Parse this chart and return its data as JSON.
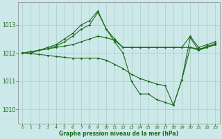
{
  "bg_color": "#cce8e8",
  "line_color": "#1a6b1a",
  "grid_color": "#aacccc",
  "xlabel": "Graphe pression niveau de la mer (hPa)",
  "xlim": [
    -0.5,
    23.5
  ],
  "ylim": [
    1009.5,
    1013.8
  ],
  "yticks": [
    1010,
    1011,
    1012,
    1013
  ],
  "xticks": [
    0,
    1,
    2,
    3,
    4,
    5,
    6,
    7,
    8,
    9,
    10,
    11,
    12,
    13,
    14,
    15,
    16,
    17,
    18,
    19,
    20,
    21,
    22,
    23
  ],
  "series": [
    {
      "x": [
        0,
        1,
        2,
        3,
        4,
        5,
        6,
        7,
        8,
        9,
        10,
        11,
        12,
        13,
        14,
        15,
        16,
        17,
        18,
        19,
        20,
        21,
        22,
        23
      ],
      "y": [
        1012.0,
        1012.0,
        1012.1,
        1012.2,
        1012.3,
        1012.5,
        1012.7,
        1013.0,
        1013.15,
        1013.5,
        1012.85,
        1012.4,
        1012.0,
        1011.0,
        1010.55,
        1010.55,
        1010.35,
        1010.25,
        1010.15,
        1011.05,
        1012.55,
        1012.1,
        1012.25,
        1012.3
      ]
    },
    {
      "x": [
        0,
        1,
        2,
        3,
        4,
        5,
        6,
        7,
        8,
        9,
        10,
        11,
        12,
        13,
        14,
        15,
        16,
        17,
        18,
        19,
        20,
        21,
        22,
        23
      ],
      "y": [
        1012.0,
        1012.05,
        1012.1,
        1012.15,
        1012.25,
        1012.4,
        1012.6,
        1012.85,
        1013.0,
        1013.45,
        1012.85,
        1012.5,
        1012.2,
        1012.2,
        1012.2,
        1012.2,
        1012.2,
        1012.2,
        1012.2,
        1012.2,
        1012.6,
        1012.2,
        1012.3,
        1012.4
      ]
    },
    {
      "x": [
        0,
        1,
        2,
        3,
        4,
        5,
        6,
        7,
        8,
        9,
        10,
        11,
        12,
        13,
        14,
        15,
        16,
        17,
        18,
        19,
        20,
        21,
        22,
        23
      ],
      "y": [
        1012.0,
        1012.05,
        1012.1,
        1012.15,
        1012.2,
        1012.25,
        1012.3,
        1012.4,
        1012.5,
        1012.6,
        1012.55,
        1012.45,
        1012.2,
        1012.2,
        1012.2,
        1012.2,
        1012.2,
        1012.2,
        1012.2,
        1012.2,
        1012.2,
        1012.15,
        1012.2,
        1012.35
      ]
    },
    {
      "x": [
        0,
        1,
        2,
        3,
        4,
        5,
        6,
        7,
        8,
        9,
        10,
        11,
        12,
        13,
        14,
        15,
        16,
        17,
        18,
        19,
        20,
        21,
        22,
        23
      ],
      "y": [
        1012.0,
        1011.98,
        1011.95,
        1011.92,
        1011.88,
        1011.85,
        1011.82,
        1011.82,
        1011.82,
        1011.82,
        1011.75,
        1011.6,
        1011.45,
        1011.25,
        1011.1,
        1011.0,
        1010.9,
        1010.85,
        1010.15,
        1011.05,
        1012.2,
        1012.1,
        1012.2,
        1012.3
      ]
    }
  ]
}
